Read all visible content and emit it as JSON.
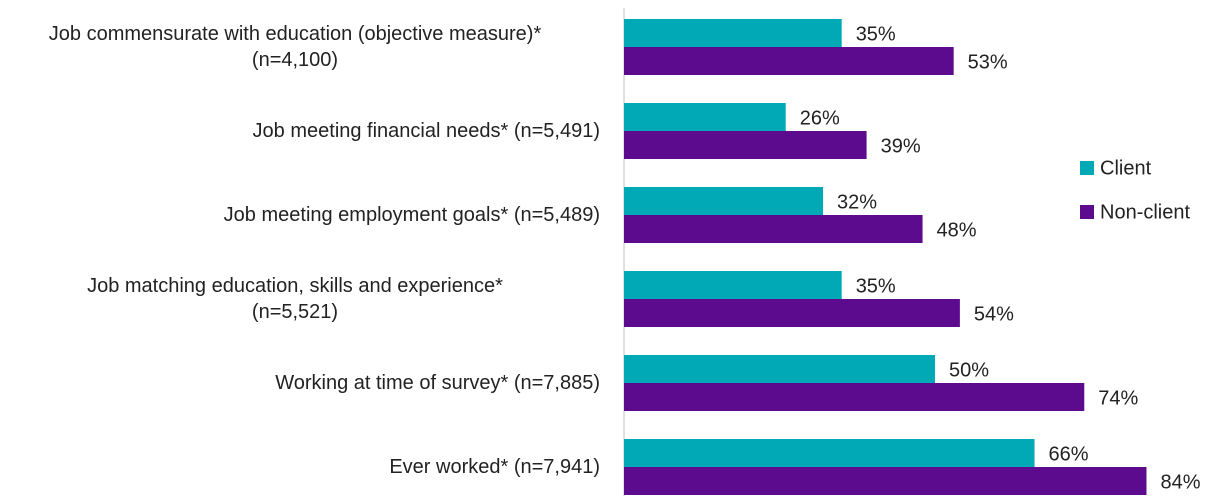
{
  "chart_data": {
    "type": "hbar",
    "categories": [
      "Job commensurate with education (objective measure)*\n(n=4,100)",
      "Job meeting financial needs* (n=5,491)",
      "Job meeting employment goals* (n=5,489)",
      "Job matching education, skills and experience*\n(n=5,521)",
      "Working at time of survey* (n=7,885)",
      "Ever worked* (n=7,941)"
    ],
    "series": [
      {
        "name": "Client",
        "color": "#00a9b5",
        "values": [
          35,
          26,
          32,
          35,
          50,
          66
        ],
        "value_labels": [
          "35%",
          "26%",
          "32%",
          "35%",
          "50%",
          "66%"
        ]
      },
      {
        "name": "Non-client",
        "color": "#5c0a8e",
        "values": [
          53,
          39,
          48,
          54,
          74,
          84
        ],
        "value_labels": [
          "53%",
          "39%",
          "48%",
          "54%",
          "74%",
          "84%"
        ]
      }
    ],
    "legend": "right"
  }
}
